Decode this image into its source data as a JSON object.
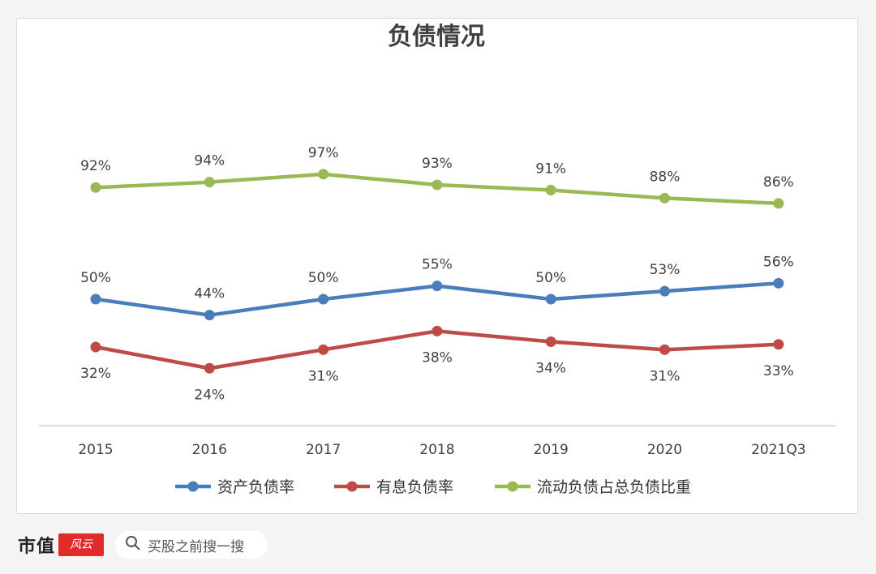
{
  "chart_data": {
    "type": "line",
    "title": "负债情况",
    "categories": [
      "2015",
      "2016",
      "2017",
      "2018",
      "2019",
      "2020",
      "2021Q3"
    ],
    "series": [
      {
        "name": "资产负债率",
        "color": "#4a7ebb",
        "values": [
          50,
          44,
          50,
          55,
          50,
          53,
          56
        ],
        "labels": [
          "50%",
          "44%",
          "50%",
          "55%",
          "50%",
          "53%",
          "56%"
        ],
        "label_position": "above"
      },
      {
        "name": "有息负债率",
        "color": "#be4b48",
        "values": [
          32,
          24,
          31,
          38,
          34,
          31,
          33
        ],
        "labels": [
          "32%",
          "24%",
          "31%",
          "38%",
          "34%",
          "31%",
          "33%"
        ],
        "label_position": "below"
      },
      {
        "name": "流动负债占总负债比重",
        "color": "#98b954",
        "values": [
          92,
          94,
          97,
          93,
          91,
          88,
          86
        ],
        "labels": [
          "92%",
          "94%",
          "97%",
          "93%",
          "91%",
          "88%",
          "86%"
        ],
        "label_position": "above"
      }
    ],
    "legend_position": "bottom",
    "grid": false,
    "yaxis_visible": false
  },
  "footer": {
    "brand": "市值",
    "brand_logo": "风云",
    "search_placeholder": "买股之前搜一搜",
    "search_icon": "search-icon"
  }
}
